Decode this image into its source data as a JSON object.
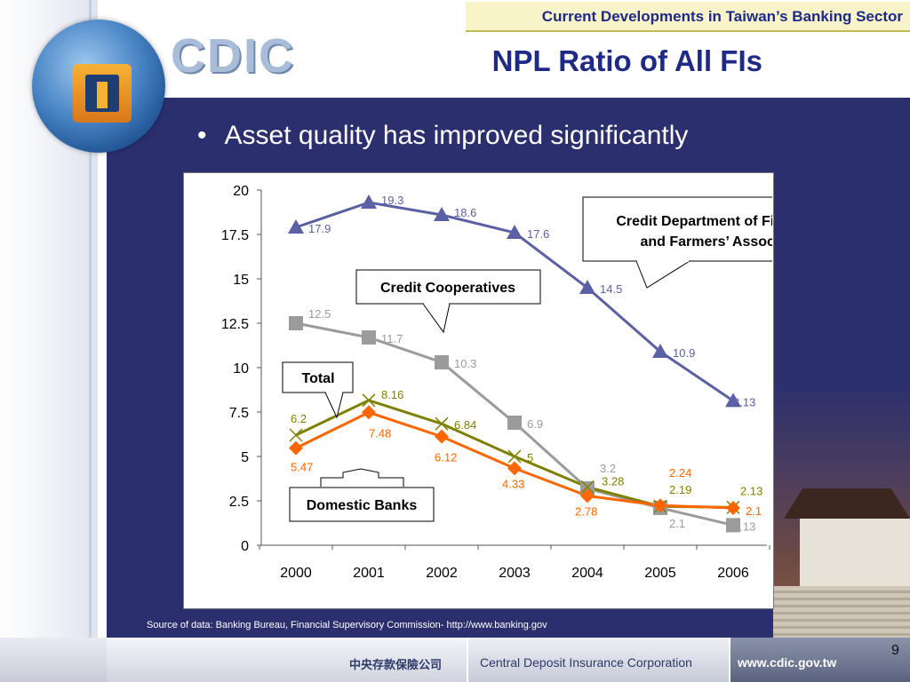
{
  "header": {
    "tag": "Current Developments in Taiwan’s Banking Sector"
  },
  "logo": {
    "text": "CDIC"
  },
  "slide": {
    "title": "NPL Ratio of All FIs",
    "bullet": "Asset quality has improved significantly",
    "source": "Source of data: Banking Bureau, Financial Supervisory Commission-  http://www.banking.gov",
    "page_number": "9"
  },
  "footer": {
    "chinese_name": "中央存款保險公司",
    "corporation": "Central Deposit Insurance Corporation",
    "website": "www.cdic.gov.tw"
  },
  "chart_data": {
    "type": "line",
    "x": [
      "2000",
      "2001",
      "2002",
      "2003",
      "2004",
      "2005",
      "2006"
    ],
    "ylim": [
      0,
      20
    ],
    "yticks": [
      "0",
      "2.5",
      "5",
      "7.5",
      "10",
      "12.5",
      "15",
      "17.5",
      "20"
    ],
    "grid": false,
    "series": [
      {
        "name": "Credit Department of Fishermen’s and Farmers’ Associations",
        "color": "#5b5fa3",
        "marker": "triangle",
        "values": [
          17.9,
          19.3,
          18.6,
          17.6,
          14.5,
          10.9,
          8.13
        ],
        "labels": [
          "17.9",
          "19.3",
          "18.6",
          "17.6",
          "14.5",
          "10.9",
          "8.13"
        ]
      },
      {
        "name": "Credit Cooperatives",
        "color": "#9b9b9b",
        "marker": "square",
        "values": [
          12.5,
          11.7,
          10.3,
          6.9,
          3.2,
          2.1,
          1.13
        ],
        "labels": [
          "12.5",
          "11.7",
          "10.3",
          "6.9",
          "3.2",
          "2.1",
          "1.13"
        ]
      },
      {
        "name": "Total",
        "color": "#808000",
        "marker": "x",
        "values": [
          6.2,
          8.16,
          6.84,
          5,
          3.28,
          2.19,
          2.13
        ],
        "labels": [
          "6.2",
          "8.16",
          "6.84",
          "5",
          "3.28",
          "2.19",
          "2.13"
        ]
      },
      {
        "name": "Domestic Banks",
        "color": "#ff6600",
        "marker": "diamond",
        "values": [
          5.47,
          7.48,
          6.12,
          4.33,
          2.78,
          2.24,
          2.1
        ],
        "labels": [
          "5.47",
          "7.48",
          "6.12",
          "4.33",
          "2.78",
          "2.24",
          "2.1"
        ]
      }
    ],
    "callouts": {
      "fishermen": [
        "Credit Department of Fishermen’s",
        "and Farmers’ Associations"
      ],
      "cooperatives": "Credit Cooperatives",
      "total": "Total",
      "domestic": "Domestic Banks"
    }
  }
}
